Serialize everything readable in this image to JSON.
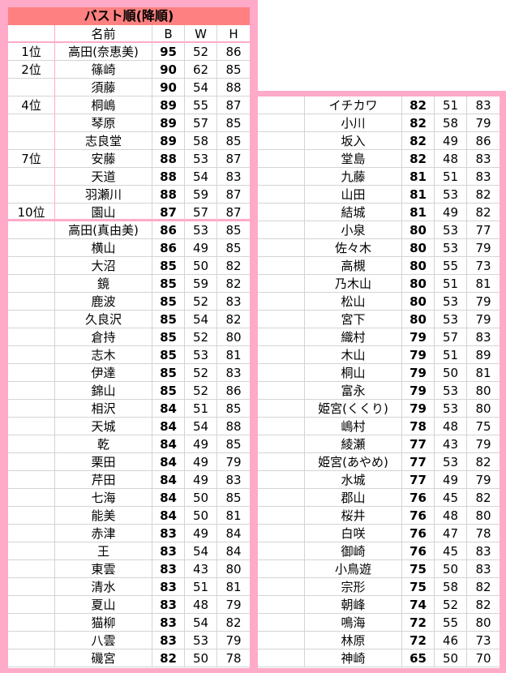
{
  "title": "バスト順(降順)",
  "columns": {
    "rank": "",
    "name": "名前",
    "b": "B",
    "w": "W",
    "h": "H"
  },
  "colors": {
    "frame": "#ffaac8",
    "title_bg": "#ff8080",
    "grid": "#d4d4d4"
  },
  "left_rows": [
    {
      "rank": "1位",
      "name": "高田(奈恵美)",
      "b": "95",
      "w": "52",
      "h": "86"
    },
    {
      "rank": "2位",
      "name": "篠崎",
      "b": "90",
      "w": "62",
      "h": "85"
    },
    {
      "rank": "",
      "name": "須藤",
      "b": "90",
      "w": "54",
      "h": "88"
    },
    {
      "rank": "4位",
      "name": "桐嶋",
      "b": "89",
      "w": "55",
      "h": "87"
    },
    {
      "rank": "",
      "name": "琴原",
      "b": "89",
      "w": "57",
      "h": "85"
    },
    {
      "rank": "",
      "name": "志良堂",
      "b": "89",
      "w": "58",
      "h": "85"
    },
    {
      "rank": "7位",
      "name": "安藤",
      "b": "88",
      "w": "53",
      "h": "87"
    },
    {
      "rank": "",
      "name": "天道",
      "b": "88",
      "w": "54",
      "h": "83"
    },
    {
      "rank": "",
      "name": "羽瀬川",
      "b": "88",
      "w": "59",
      "h": "87"
    },
    {
      "rank": "10位",
      "name": "園山",
      "b": "87",
      "w": "57",
      "h": "87"
    },
    {
      "rank": "",
      "name": "高田(真由美)",
      "b": "86",
      "w": "53",
      "h": "85"
    },
    {
      "rank": "",
      "name": "横山",
      "b": "86",
      "w": "49",
      "h": "85"
    },
    {
      "rank": "",
      "name": "大沼",
      "b": "85",
      "w": "50",
      "h": "82"
    },
    {
      "rank": "",
      "name": "鏡",
      "b": "85",
      "w": "59",
      "h": "82"
    },
    {
      "rank": "",
      "name": "鹿波",
      "b": "85",
      "w": "52",
      "h": "83"
    },
    {
      "rank": "",
      "name": "久良沢",
      "b": "85",
      "w": "54",
      "h": "82"
    },
    {
      "rank": "",
      "name": "倉持",
      "b": "85",
      "w": "52",
      "h": "80"
    },
    {
      "rank": "",
      "name": "志木",
      "b": "85",
      "w": "53",
      "h": "81"
    },
    {
      "rank": "",
      "name": "伊達",
      "b": "85",
      "w": "52",
      "h": "83"
    },
    {
      "rank": "",
      "name": "錦山",
      "b": "85",
      "w": "52",
      "h": "86"
    },
    {
      "rank": "",
      "name": "相沢",
      "b": "84",
      "w": "51",
      "h": "85"
    },
    {
      "rank": "",
      "name": "天城",
      "b": "84",
      "w": "54",
      "h": "88"
    },
    {
      "rank": "",
      "name": "乾",
      "b": "84",
      "w": "49",
      "h": "85"
    },
    {
      "rank": "",
      "name": "栗田",
      "b": "84",
      "w": "49",
      "h": "79"
    },
    {
      "rank": "",
      "name": "芹田",
      "b": "84",
      "w": "49",
      "h": "83"
    },
    {
      "rank": "",
      "name": "七海",
      "b": "84",
      "w": "50",
      "h": "85"
    },
    {
      "rank": "",
      "name": "能美",
      "b": "84",
      "w": "50",
      "h": "81"
    },
    {
      "rank": "",
      "name": "赤津",
      "b": "83",
      "w": "49",
      "h": "84"
    },
    {
      "rank": "",
      "name": "王",
      "b": "83",
      "w": "54",
      "h": "84"
    },
    {
      "rank": "",
      "name": "東雲",
      "b": "83",
      "w": "43",
      "h": "80"
    },
    {
      "rank": "",
      "name": "清水",
      "b": "83",
      "w": "51",
      "h": "81"
    },
    {
      "rank": "",
      "name": "夏山",
      "b": "83",
      "w": "48",
      "h": "79"
    },
    {
      "rank": "",
      "name": "猫柳",
      "b": "83",
      "w": "54",
      "h": "82"
    },
    {
      "rank": "",
      "name": "八雲",
      "b": "83",
      "w": "53",
      "h": "79"
    },
    {
      "rank": "",
      "name": "磯宮",
      "b": "82",
      "w": "50",
      "h": "78"
    }
  ],
  "right_rows": [
    {
      "rank": "",
      "name": "イチカワ",
      "b": "82",
      "w": "51",
      "h": "83"
    },
    {
      "rank": "",
      "name": "小川",
      "b": "82",
      "w": "58",
      "h": "79"
    },
    {
      "rank": "",
      "name": "坂入",
      "b": "82",
      "w": "49",
      "h": "86"
    },
    {
      "rank": "",
      "name": "堂島",
      "b": "82",
      "w": "48",
      "h": "83"
    },
    {
      "rank": "",
      "name": "九藤",
      "b": "81",
      "w": "51",
      "h": "83"
    },
    {
      "rank": "",
      "name": "山田",
      "b": "81",
      "w": "53",
      "h": "82"
    },
    {
      "rank": "",
      "name": "結城",
      "b": "81",
      "w": "49",
      "h": "82"
    },
    {
      "rank": "",
      "name": "小泉",
      "b": "80",
      "w": "53",
      "h": "77"
    },
    {
      "rank": "",
      "name": "佐々木",
      "b": "80",
      "w": "53",
      "h": "79"
    },
    {
      "rank": "",
      "name": "高槻",
      "b": "80",
      "w": "55",
      "h": "73"
    },
    {
      "rank": "",
      "name": "乃木山",
      "b": "80",
      "w": "51",
      "h": "81"
    },
    {
      "rank": "",
      "name": "松山",
      "b": "80",
      "w": "53",
      "h": "79"
    },
    {
      "rank": "",
      "name": "宮下",
      "b": "80",
      "w": "53",
      "h": "79"
    },
    {
      "rank": "",
      "name": "織村",
      "b": "79",
      "w": "57",
      "h": "83"
    },
    {
      "rank": "",
      "name": "木山",
      "b": "79",
      "w": "51",
      "h": "89"
    },
    {
      "rank": "",
      "name": "桐山",
      "b": "79",
      "w": "50",
      "h": "81"
    },
    {
      "rank": "",
      "name": "富永",
      "b": "79",
      "w": "53",
      "h": "80"
    },
    {
      "rank": "",
      "name": "姫宮(くくり)",
      "b": "79",
      "w": "53",
      "h": "80"
    },
    {
      "rank": "",
      "name": "嶋村",
      "b": "78",
      "w": "48",
      "h": "75"
    },
    {
      "rank": "",
      "name": "綾瀬",
      "b": "77",
      "w": "43",
      "h": "79"
    },
    {
      "rank": "",
      "name": "姫宮(あやめ)",
      "b": "77",
      "w": "53",
      "h": "82"
    },
    {
      "rank": "",
      "name": "水城",
      "b": "77",
      "w": "49",
      "h": "79"
    },
    {
      "rank": "",
      "name": "郡山",
      "b": "76",
      "w": "45",
      "h": "82"
    },
    {
      "rank": "",
      "name": "桜井",
      "b": "76",
      "w": "48",
      "h": "80"
    },
    {
      "rank": "",
      "name": "白咲",
      "b": "76",
      "w": "47",
      "h": "78"
    },
    {
      "rank": "",
      "name": "御崎",
      "b": "76",
      "w": "45",
      "h": "83"
    },
    {
      "rank": "",
      "name": "小鳥遊",
      "b": "75",
      "w": "50",
      "h": "83"
    },
    {
      "rank": "",
      "name": "宗形",
      "b": "75",
      "w": "58",
      "h": "82"
    },
    {
      "rank": "",
      "name": "朝峰",
      "b": "74",
      "w": "52",
      "h": "82"
    },
    {
      "rank": "",
      "name": "鳴海",
      "b": "72",
      "w": "55",
      "h": "80"
    },
    {
      "rank": "",
      "name": "林原",
      "b": "72",
      "w": "46",
      "h": "73"
    },
    {
      "rank": "",
      "name": "神崎",
      "b": "65",
      "w": "50",
      "h": "70"
    }
  ]
}
